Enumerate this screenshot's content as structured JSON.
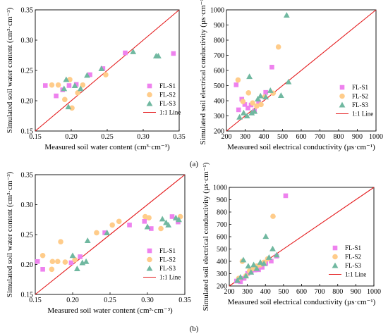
{
  "panel_labels": [
    "(a)",
    "(b)"
  ],
  "legend_labels": [
    "FL-S1",
    "FL-S2",
    "FL-S3",
    "1:1 Line"
  ],
  "colors": {
    "FL-S1": "#ee82ee",
    "FL-S2": "#ffcc8a",
    "FL-S3": "#70b8a0",
    "line": "#e41a1c"
  },
  "chart_data": [
    {
      "type": "scatter",
      "panel": "a",
      "xlabel": "Measured soil water content (cm³·cm⁻³)",
      "ylabel": "Simulated soil water content (cm³·cm⁻³)",
      "xlim": [
        0.15,
        0.35
      ],
      "ylim": [
        0.15,
        0.35
      ],
      "xticks": [
        "0.15",
        "0.20",
        "0.25",
        "0.30",
        "0.35"
      ],
      "yticks": [
        "0.15",
        "0.20",
        "0.25",
        "0.30",
        "0.35"
      ],
      "reference_line": "1:1 Line",
      "legend_position": "bottom-right",
      "series": [
        {
          "name": "FL-S1",
          "marker": "square",
          "points": [
            [
              0.164,
              0.225
            ],
            [
              0.179,
              0.208
            ],
            [
              0.188,
              0.218
            ],
            [
              0.197,
              0.225
            ],
            [
              0.207,
              0.227
            ],
            [
              0.226,
              0.243
            ],
            [
              0.244,
              0.253
            ],
            [
              0.275,
              0.279
            ],
            [
              0.342,
              0.278
            ]
          ]
        },
        {
          "name": "FL-S2",
          "marker": "circle",
          "points": [
            [
              0.173,
              0.226
            ],
            [
              0.182,
              0.226
            ],
            [
              0.191,
              0.202
            ],
            [
              0.198,
              0.235
            ],
            [
              0.201,
              0.188
            ],
            [
              0.209,
              0.213
            ],
            [
              0.216,
              0.226
            ],
            [
              0.248,
              0.243
            ]
          ]
        },
        {
          "name": "FL-S3",
          "marker": "triangle",
          "points": [
            [
              0.19,
              0.22
            ],
            [
              0.193,
              0.235
            ],
            [
              0.196,
              0.19
            ],
            [
              0.205,
              0.225
            ],
            [
              0.213,
              0.22
            ],
            [
              0.222,
              0.242
            ],
            [
              0.242,
              0.253
            ],
            [
              0.286,
              0.281
            ],
            [
              0.318,
              0.274
            ],
            [
              0.321,
              0.274
            ]
          ]
        }
      ]
    },
    {
      "type": "scatter",
      "panel": "a",
      "xlabel": "Measured soil electrical conductivity (µs·cm⁻¹)",
      "ylabel": "Simulated soil electrical conductivity (µs·cm⁻¹)",
      "xlim": [
        200,
        1000
      ],
      "ylim": [
        200,
        1000
      ],
      "xticks": [
        "200",
        "300",
        "400",
        "500",
        "600",
        "700",
        "800",
        "900",
        "1000"
      ],
      "yticks": [
        "200",
        "300",
        "400",
        "500",
        "600",
        "700",
        "800",
        "900",
        "1000"
      ],
      "reference_line": "1:1 Line",
      "legend_position": "bottom-right",
      "series": [
        {
          "name": "FL-S1",
          "marker": "square",
          "points": [
            [
              252,
              505
            ],
            [
              265,
              340
            ],
            [
              282,
              410
            ],
            [
              298,
              375
            ],
            [
              315,
              352
            ],
            [
              332,
              372
            ],
            [
              350,
              332
            ],
            [
              372,
              392
            ],
            [
              410,
              455
            ],
            [
              443,
              622
            ]
          ]
        },
        {
          "name": "FL-S2",
          "marker": "circle",
          "points": [
            [
              262,
              537
            ],
            [
              288,
              395
            ],
            [
              318,
              452
            ],
            [
              340,
              385
            ],
            [
              362,
              365
            ],
            [
              385,
              375
            ],
            [
              405,
              425
            ],
            [
              478,
              755
            ],
            [
              450,
              450
            ]
          ]
        },
        {
          "name": "FL-S3",
          "marker": "triangle",
          "points": [
            [
              270,
              292
            ],
            [
              292,
              320
            ],
            [
              310,
              300
            ],
            [
              323,
              560
            ],
            [
              335,
              320
            ],
            [
              350,
              330
            ],
            [
              368,
              412
            ],
            [
              382,
              432
            ],
            [
              410,
              425
            ],
            [
              435,
              468
            ],
            [
              492,
              435
            ],
            [
              522,
              965
            ],
            [
              532,
              525
            ]
          ]
        }
      ]
    },
    {
      "type": "scatter",
      "panel": "b",
      "xlabel": "Measured soil water content (cm³·cm⁻³)",
      "ylabel": "Simulated soil water content (cm³·cm⁻³)",
      "xlim": [
        0.15,
        0.35
      ],
      "ylim": [
        0.15,
        0.35
      ],
      "xticks": [
        "0.15",
        "0.20",
        "0.25",
        "0.30",
        "0.35"
      ],
      "yticks": [
        "0.15",
        "0.20",
        "0.25",
        "0.30",
        "0.35"
      ],
      "reference_line": "1:1 Line",
      "legend_position": "bottom-right",
      "series": [
        {
          "name": "FL-S1",
          "marker": "square",
          "points": [
            [
              0.153,
              0.205
            ],
            [
              0.16,
              0.192
            ],
            [
              0.198,
              0.203
            ],
            [
              0.21,
              0.213
            ],
            [
              0.243,
              0.253
            ],
            [
              0.276,
              0.266
            ],
            [
              0.296,
              0.272
            ],
            [
              0.305,
              0.26
            ],
            [
              0.333,
              0.28
            ],
            [
              0.341,
              0.271
            ]
          ]
        },
        {
          "name": "FL-S2",
          "marker": "circle",
          "points": [
            [
              0.16,
              0.215
            ],
            [
              0.172,
              0.192
            ],
            [
              0.173,
              0.205
            ],
            [
              0.18,
              0.205
            ],
            [
              0.184,
              0.238
            ],
            [
              0.19,
              0.204
            ],
            [
              0.203,
              0.208
            ],
            [
              0.232,
              0.253
            ],
            [
              0.253,
              0.266
            ],
            [
              0.262,
              0.272
            ],
            [
              0.297,
              0.28
            ],
            [
              0.302,
              0.278
            ],
            [
              0.318,
              0.26
            ],
            [
              0.344,
              0.28
            ]
          ]
        },
        {
          "name": "FL-S3",
          "marker": "triangle",
          "points": [
            [
              0.2,
              0.215
            ],
            [
              0.206,
              0.193
            ],
            [
              0.213,
              0.203
            ],
            [
              0.218,
              0.205
            ],
            [
              0.22,
              0.24
            ],
            [
              0.246,
              0.253
            ],
            [
              0.3,
              0.263
            ],
            [
              0.32,
              0.276
            ],
            [
              0.325,
              0.27
            ],
            [
              0.328,
              0.266
            ],
            [
              0.338,
              0.278
            ],
            [
              0.342,
              0.275
            ]
          ]
        }
      ]
    },
    {
      "type": "scatter",
      "panel": "b",
      "xlabel": "Measured soil electrical conductivity (µs·cm⁻¹)",
      "ylabel": "Simulated soil electrical conductivity (µs·cm⁻¹)",
      "xlim": [
        200,
        1000
      ],
      "ylim": [
        200,
        1000
      ],
      "xticks": [
        "200",
        "300",
        "400",
        "500",
        "600",
        "700",
        "800",
        "900",
        "1000"
      ],
      "yticks": [
        "200",
        "300",
        "400",
        "500",
        "600",
        "700",
        "800",
        "900",
        "1000"
      ],
      "reference_line": "1:1 Line",
      "legend_position": "bottom-right",
      "series": [
        {
          "name": "FL-S1",
          "marker": "square",
          "points": [
            [
              240,
              240
            ],
            [
              262,
              235
            ],
            [
              282,
              262
            ],
            [
              302,
              302
            ],
            [
              322,
              320
            ],
            [
              342,
              330
            ],
            [
              362,
              332
            ],
            [
              382,
              352
            ],
            [
              402,
              382
            ],
            [
              432,
              402
            ],
            [
              462,
              442
            ],
            [
              512,
              932
            ]
          ]
        },
        {
          "name": "FL-S2",
          "marker": "circle",
          "points": [
            [
              252,
              262
            ],
            [
              272,
              400
            ],
            [
              292,
              282
            ],
            [
              312,
              322
            ],
            [
              332,
              342
            ],
            [
              352,
              362
            ],
            [
              372,
              372
            ],
            [
              392,
              392
            ],
            [
              412,
              420
            ],
            [
              442,
              765
            ]
          ]
        },
        {
          "name": "FL-S3",
          "marker": "triangle",
          "points": [
            [
              245,
              245
            ],
            [
              262,
              272
            ],
            [
              278,
              412
            ],
            [
              292,
              282
            ],
            [
              305,
              362
            ],
            [
              320,
              312
            ],
            [
              335,
              372
            ],
            [
              352,
              342
            ],
            [
              372,
              392
            ],
            [
              392,
              382
            ],
            [
              402,
              602
            ],
            [
              420,
              432
            ],
            [
              440,
              502
            ],
            [
              462,
              452
            ]
          ]
        }
      ]
    }
  ]
}
